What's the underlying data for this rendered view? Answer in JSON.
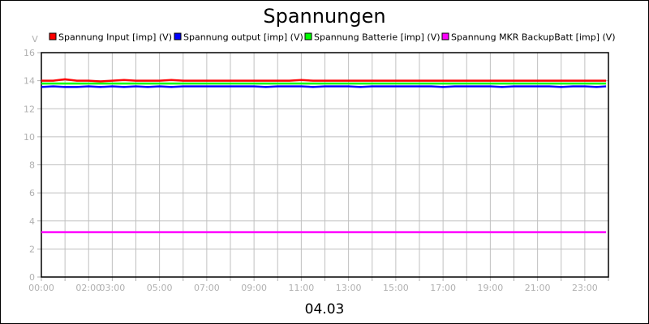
{
  "chart_data": {
    "type": "line",
    "title": "Spannungen",
    "xlabel": "04.03",
    "ylabel": "V",
    "ylim": [
      0,
      16
    ],
    "yticks": [
      0,
      2,
      4,
      6,
      8,
      10,
      12,
      14,
      16
    ],
    "xlim_hours": [
      0,
      24
    ],
    "xtick_labels": [
      {
        "label": "00:00",
        "hour": 0
      },
      {
        "label": "02:00",
        "hour": 2
      },
      {
        "label": "03:00",
        "hour": 3
      },
      {
        "label": "05:00",
        "hour": 5
      },
      {
        "label": "07:00",
        "hour": 7
      },
      {
        "label": "09:00",
        "hour": 9
      },
      {
        "label": "11:00",
        "hour": 11
      },
      {
        "label": "13:00",
        "hour": 13
      },
      {
        "label": "15:00",
        "hour": 15
      },
      {
        "label": "17:00",
        "hour": 17
      },
      {
        "label": "19:00",
        "hour": 19
      },
      {
        "label": "21:00",
        "hour": 21
      },
      {
        "label": "23:00",
        "hour": 23
      }
    ],
    "grid": true,
    "legend_position": "top",
    "x_hours": [
      0,
      0.5,
      1,
      1.5,
      2,
      2.5,
      3,
      3.5,
      4,
      4.5,
      5,
      5.5,
      6,
      6.5,
      7,
      7.5,
      8,
      8.5,
      9,
      9.5,
      10,
      10.5,
      11,
      11.5,
      12,
      12.5,
      13,
      13.5,
      14,
      14.5,
      15,
      15.5,
      16,
      16.5,
      17,
      17.5,
      18,
      18.5,
      19,
      19.5,
      20,
      20.5,
      21,
      21.5,
      22,
      22.5,
      23,
      23.5,
      23.9
    ],
    "series": [
      {
        "name": "Spannung Input [imp] (V)",
        "color": "#ff0000",
        "values": [
          14.0,
          14.0,
          14.1,
          14.0,
          14.0,
          13.95,
          14.0,
          14.05,
          14.0,
          14.0,
          14.0,
          14.05,
          14.0,
          14.0,
          14.0,
          14.0,
          14.0,
          14.0,
          14.0,
          14.0,
          14.0,
          14.0,
          14.05,
          14.0,
          14.0,
          14.0,
          14.0,
          14.0,
          14.0,
          14.0,
          14.0,
          14.0,
          14.0,
          14.0,
          14.0,
          14.0,
          14.0,
          14.0,
          14.0,
          14.0,
          14.0,
          14.0,
          14.0,
          14.0,
          14.0,
          14.0,
          14.0,
          14.0,
          14.0
        ]
      },
      {
        "name": "Spannung output [imp] (V)",
        "color": "#0000ff",
        "values": [
          13.55,
          13.6,
          13.55,
          13.55,
          13.6,
          13.55,
          13.6,
          13.55,
          13.6,
          13.55,
          13.6,
          13.55,
          13.6,
          13.6,
          13.6,
          13.6,
          13.6,
          13.6,
          13.6,
          13.55,
          13.6,
          13.6,
          13.6,
          13.55,
          13.6,
          13.6,
          13.6,
          13.55,
          13.6,
          13.6,
          13.6,
          13.6,
          13.6,
          13.6,
          13.55,
          13.6,
          13.6,
          13.6,
          13.6,
          13.55,
          13.6,
          13.6,
          13.6,
          13.6,
          13.55,
          13.6,
          13.6,
          13.55,
          13.6
        ]
      },
      {
        "name": "Spannung Batterie [imp] (V)",
        "color": "#00ff00",
        "values": [
          13.8,
          13.8,
          13.8,
          13.8,
          13.8,
          13.8,
          13.8,
          13.8,
          13.8,
          13.8,
          13.8,
          13.8,
          13.8,
          13.8,
          13.8,
          13.8,
          13.8,
          13.8,
          13.8,
          13.8,
          13.8,
          13.8,
          13.8,
          13.8,
          13.8,
          13.8,
          13.8,
          13.8,
          13.8,
          13.8,
          13.8,
          13.8,
          13.8,
          13.8,
          13.8,
          13.8,
          13.8,
          13.8,
          13.8,
          13.8,
          13.8,
          13.8,
          13.8,
          13.8,
          13.8,
          13.8,
          13.8,
          13.8,
          13.8
        ]
      },
      {
        "name": "Spannung MKR BackupBatt [imp] (V)",
        "color": "#ff00ff",
        "values": [
          3.2,
          3.2,
          3.2,
          3.2,
          3.2,
          3.2,
          3.2,
          3.2,
          3.2,
          3.2,
          3.2,
          3.2,
          3.2,
          3.2,
          3.2,
          3.2,
          3.2,
          3.2,
          3.2,
          3.2,
          3.2,
          3.2,
          3.2,
          3.2,
          3.2,
          3.2,
          3.2,
          3.2,
          3.2,
          3.2,
          3.2,
          3.2,
          3.2,
          3.2,
          3.2,
          3.2,
          3.2,
          3.2,
          3.2,
          3.2,
          3.2,
          3.2,
          3.2,
          3.2,
          3.2,
          3.2,
          3.2,
          3.2,
          3.2
        ]
      }
    ]
  }
}
